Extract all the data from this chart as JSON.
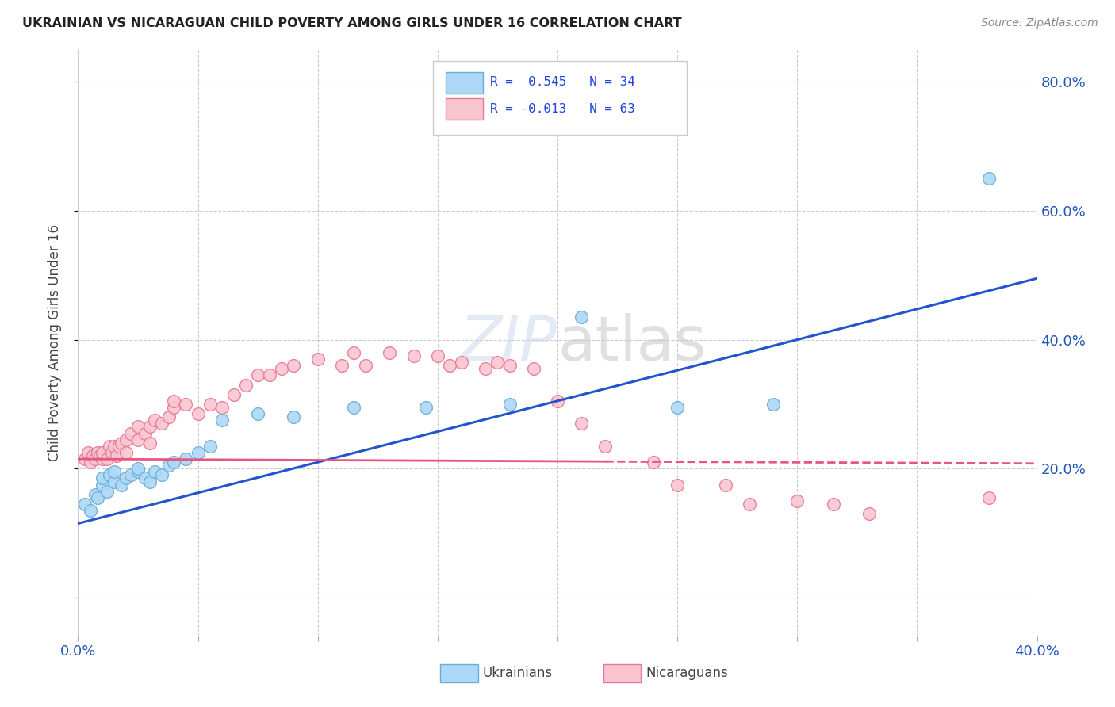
{
  "title": "UKRAINIAN VS NICARAGUAN CHILD POVERTY AMONG GIRLS UNDER 16 CORRELATION CHART",
  "source": "Source: ZipAtlas.com",
  "ylabel": "Child Poverty Among Girls Under 16",
  "xmin": 0.0,
  "xmax": 0.4,
  "ymin": -0.06,
  "ymax": 0.85,
  "watermark": "ZIPatlas",
  "legend_line1": "R =  0.545   N = 34",
  "legend_line2": "R = -0.013   N = 63",
  "ukrainian_color": "#add8f7",
  "ukrainian_edge": "#6aaed6",
  "nicaraguan_color": "#f9c6d0",
  "nicaraguan_edge": "#e87898",
  "line_ukrainian_color": "#2255cc",
  "line_nicaraguan_color": "#e85580",
  "ukr_x": [
    0.003,
    0.005,
    0.007,
    0.008,
    0.01,
    0.01,
    0.012,
    0.013,
    0.015,
    0.015,
    0.018,
    0.02,
    0.022,
    0.025,
    0.025,
    0.028,
    0.03,
    0.032,
    0.035,
    0.038,
    0.04,
    0.045,
    0.05,
    0.055,
    0.06,
    0.075,
    0.09,
    0.115,
    0.145,
    0.18,
    0.21,
    0.25,
    0.29,
    0.38
  ],
  "ukr_y": [
    0.145,
    0.135,
    0.16,
    0.155,
    0.175,
    0.185,
    0.165,
    0.19,
    0.18,
    0.195,
    0.175,
    0.185,
    0.19,
    0.195,
    0.2,
    0.185,
    0.18,
    0.195,
    0.19,
    0.205,
    0.21,
    0.215,
    0.225,
    0.235,
    0.275,
    0.285,
    0.28,
    0.295,
    0.295,
    0.3,
    0.435,
    0.295,
    0.3,
    0.65
  ],
  "nic_x": [
    0.003,
    0.004,
    0.005,
    0.006,
    0.007,
    0.008,
    0.009,
    0.01,
    0.01,
    0.012,
    0.013,
    0.014,
    0.015,
    0.016,
    0.017,
    0.018,
    0.02,
    0.02,
    0.022,
    0.025,
    0.025,
    0.028,
    0.03,
    0.03,
    0.032,
    0.035,
    0.038,
    0.04,
    0.04,
    0.045,
    0.05,
    0.055,
    0.06,
    0.065,
    0.07,
    0.075,
    0.08,
    0.085,
    0.09,
    0.1,
    0.11,
    0.115,
    0.12,
    0.13,
    0.14,
    0.15,
    0.155,
    0.16,
    0.17,
    0.175,
    0.18,
    0.19,
    0.2,
    0.21,
    0.22,
    0.24,
    0.25,
    0.27,
    0.28,
    0.3,
    0.315,
    0.33,
    0.38
  ],
  "nic_y": [
    0.215,
    0.225,
    0.21,
    0.22,
    0.215,
    0.225,
    0.22,
    0.215,
    0.225,
    0.215,
    0.235,
    0.225,
    0.235,
    0.22,
    0.235,
    0.24,
    0.225,
    0.245,
    0.255,
    0.265,
    0.245,
    0.255,
    0.24,
    0.265,
    0.275,
    0.27,
    0.28,
    0.295,
    0.305,
    0.3,
    0.285,
    0.3,
    0.295,
    0.315,
    0.33,
    0.345,
    0.345,
    0.355,
    0.36,
    0.37,
    0.36,
    0.38,
    0.36,
    0.38,
    0.375,
    0.375,
    0.36,
    0.365,
    0.355,
    0.365,
    0.36,
    0.355,
    0.305,
    0.27,
    0.235,
    0.21,
    0.175,
    0.175,
    0.145,
    0.15,
    0.145,
    0.13,
    0.155
  ],
  "ukr_line_x0": 0.0,
  "ukr_line_x1": 0.4,
  "ukr_line_y0": 0.115,
  "ukr_line_y1": 0.495,
  "nic_line_x0": 0.0,
  "nic_line_x1": 0.4,
  "nic_line_y0": 0.215,
  "nic_line_y1": 0.208
}
